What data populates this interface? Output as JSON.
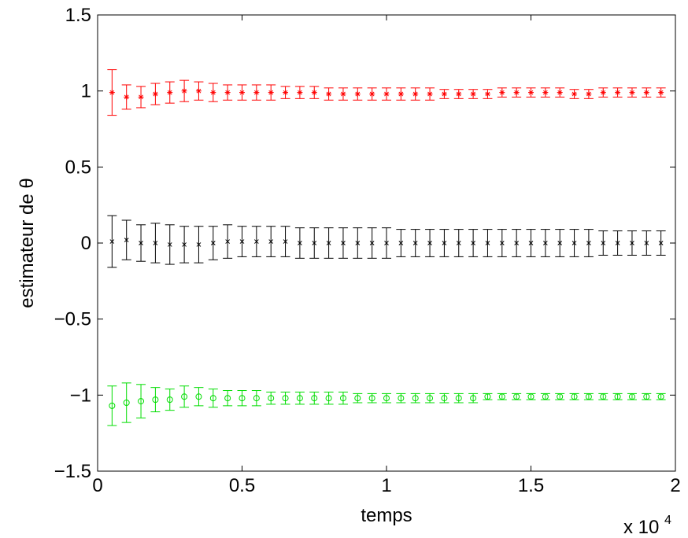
{
  "chart_data": {
    "type": "scatter",
    "title": "",
    "xlabel": "temps",
    "ylabel": "estimateur de θ",
    "x_exponent_base": "x 10",
    "x_exponent_power": "4",
    "xlim": [
      0,
      2
    ],
    "ylim": [
      -1.5,
      1.5
    ],
    "xticks": [
      0,
      0.5,
      1,
      1.5,
      2
    ],
    "xtick_labels": [
      "0",
      "0.5",
      "1",
      "1.5",
      "2"
    ],
    "yticks": [
      -1.5,
      -1,
      -0.5,
      0,
      0.5,
      1,
      1.5
    ],
    "ytick_labels": [
      "−1.5",
      "−1",
      "−0.5",
      "0",
      "0.5",
      "1",
      "1.5"
    ],
    "grid": false,
    "x": [
      0.05,
      0.1,
      0.15,
      0.2,
      0.25,
      0.3,
      0.35,
      0.4,
      0.45,
      0.5,
      0.55,
      0.6,
      0.65,
      0.7,
      0.75,
      0.8,
      0.85,
      0.9,
      0.95,
      1.0,
      1.05,
      1.1,
      1.15,
      1.2,
      1.25,
      1.3,
      1.35,
      1.4,
      1.45,
      1.5,
      1.55,
      1.6,
      1.65,
      1.7,
      1.75,
      1.8,
      1.85,
      1.9,
      1.95
    ],
    "series": [
      {
        "color": "#ff0000",
        "marker": "star",
        "values": [
          0.99,
          0.96,
          0.96,
          0.98,
          0.99,
          1.0,
          1.0,
          0.99,
          0.99,
          0.99,
          0.99,
          0.99,
          0.99,
          0.99,
          0.99,
          0.98,
          0.98,
          0.98,
          0.98,
          0.98,
          0.98,
          0.98,
          0.98,
          0.98,
          0.98,
          0.98,
          0.98,
          0.99,
          0.99,
          0.99,
          0.99,
          0.99,
          0.98,
          0.98,
          0.99,
          0.99,
          0.99,
          0.99,
          0.99
        ],
        "err": [
          0.15,
          0.08,
          0.07,
          0.07,
          0.07,
          0.07,
          0.06,
          0.06,
          0.05,
          0.05,
          0.05,
          0.05,
          0.04,
          0.04,
          0.04,
          0.04,
          0.04,
          0.04,
          0.04,
          0.04,
          0.04,
          0.04,
          0.04,
          0.03,
          0.03,
          0.03,
          0.03,
          0.03,
          0.03,
          0.03,
          0.03,
          0.03,
          0.03,
          0.03,
          0.03,
          0.03,
          0.03,
          0.03,
          0.03
        ]
      },
      {
        "color": "#000000",
        "marker": "x",
        "values": [
          0.01,
          0.02,
          0.0,
          0.0,
          -0.01,
          -0.01,
          -0.01,
          0.0,
          0.01,
          0.01,
          0.01,
          0.01,
          0.01,
          0.0,
          0.0,
          0.0,
          0.0,
          0.0,
          0.0,
          0.0,
          0.0,
          0.0,
          0.0,
          0.0,
          0.0,
          0.0,
          0.0,
          0.0,
          0.0,
          0.0,
          0.0,
          0.0,
          0.0,
          0.0,
          0.0,
          0.0,
          0.0,
          0.0,
          0.0
        ],
        "err": [
          0.17,
          0.13,
          0.12,
          0.13,
          0.13,
          0.12,
          0.12,
          0.11,
          0.11,
          0.1,
          0.1,
          0.1,
          0.1,
          0.1,
          0.1,
          0.1,
          0.1,
          0.1,
          0.1,
          0.1,
          0.09,
          0.09,
          0.09,
          0.09,
          0.09,
          0.09,
          0.09,
          0.09,
          0.09,
          0.09,
          0.09,
          0.09,
          0.09,
          0.09,
          0.08,
          0.08,
          0.08,
          0.08,
          0.08
        ]
      },
      {
        "color": "#00dd00",
        "marker": "circle",
        "values": [
          -1.07,
          -1.05,
          -1.04,
          -1.03,
          -1.03,
          -1.01,
          -1.01,
          -1.02,
          -1.02,
          -1.02,
          -1.02,
          -1.02,
          -1.02,
          -1.02,
          -1.02,
          -1.02,
          -1.02,
          -1.02,
          -1.02,
          -1.02,
          -1.02,
          -1.02,
          -1.02,
          -1.02,
          -1.02,
          -1.02,
          -1.01,
          -1.01,
          -1.01,
          -1.01,
          -1.01,
          -1.01,
          -1.01,
          -1.01,
          -1.01,
          -1.01,
          -1.01,
          -1.01,
          -1.01
        ],
        "err": [
          0.13,
          0.13,
          0.11,
          0.08,
          0.07,
          0.07,
          0.06,
          0.06,
          0.05,
          0.05,
          0.05,
          0.04,
          0.04,
          0.04,
          0.04,
          0.04,
          0.04,
          0.03,
          0.03,
          0.03,
          0.03,
          0.03,
          0.03,
          0.03,
          0.03,
          0.03,
          0.02,
          0.02,
          0.02,
          0.02,
          0.02,
          0.02,
          0.02,
          0.02,
          0.02,
          0.02,
          0.02,
          0.02,
          0.02
        ]
      }
    ]
  }
}
